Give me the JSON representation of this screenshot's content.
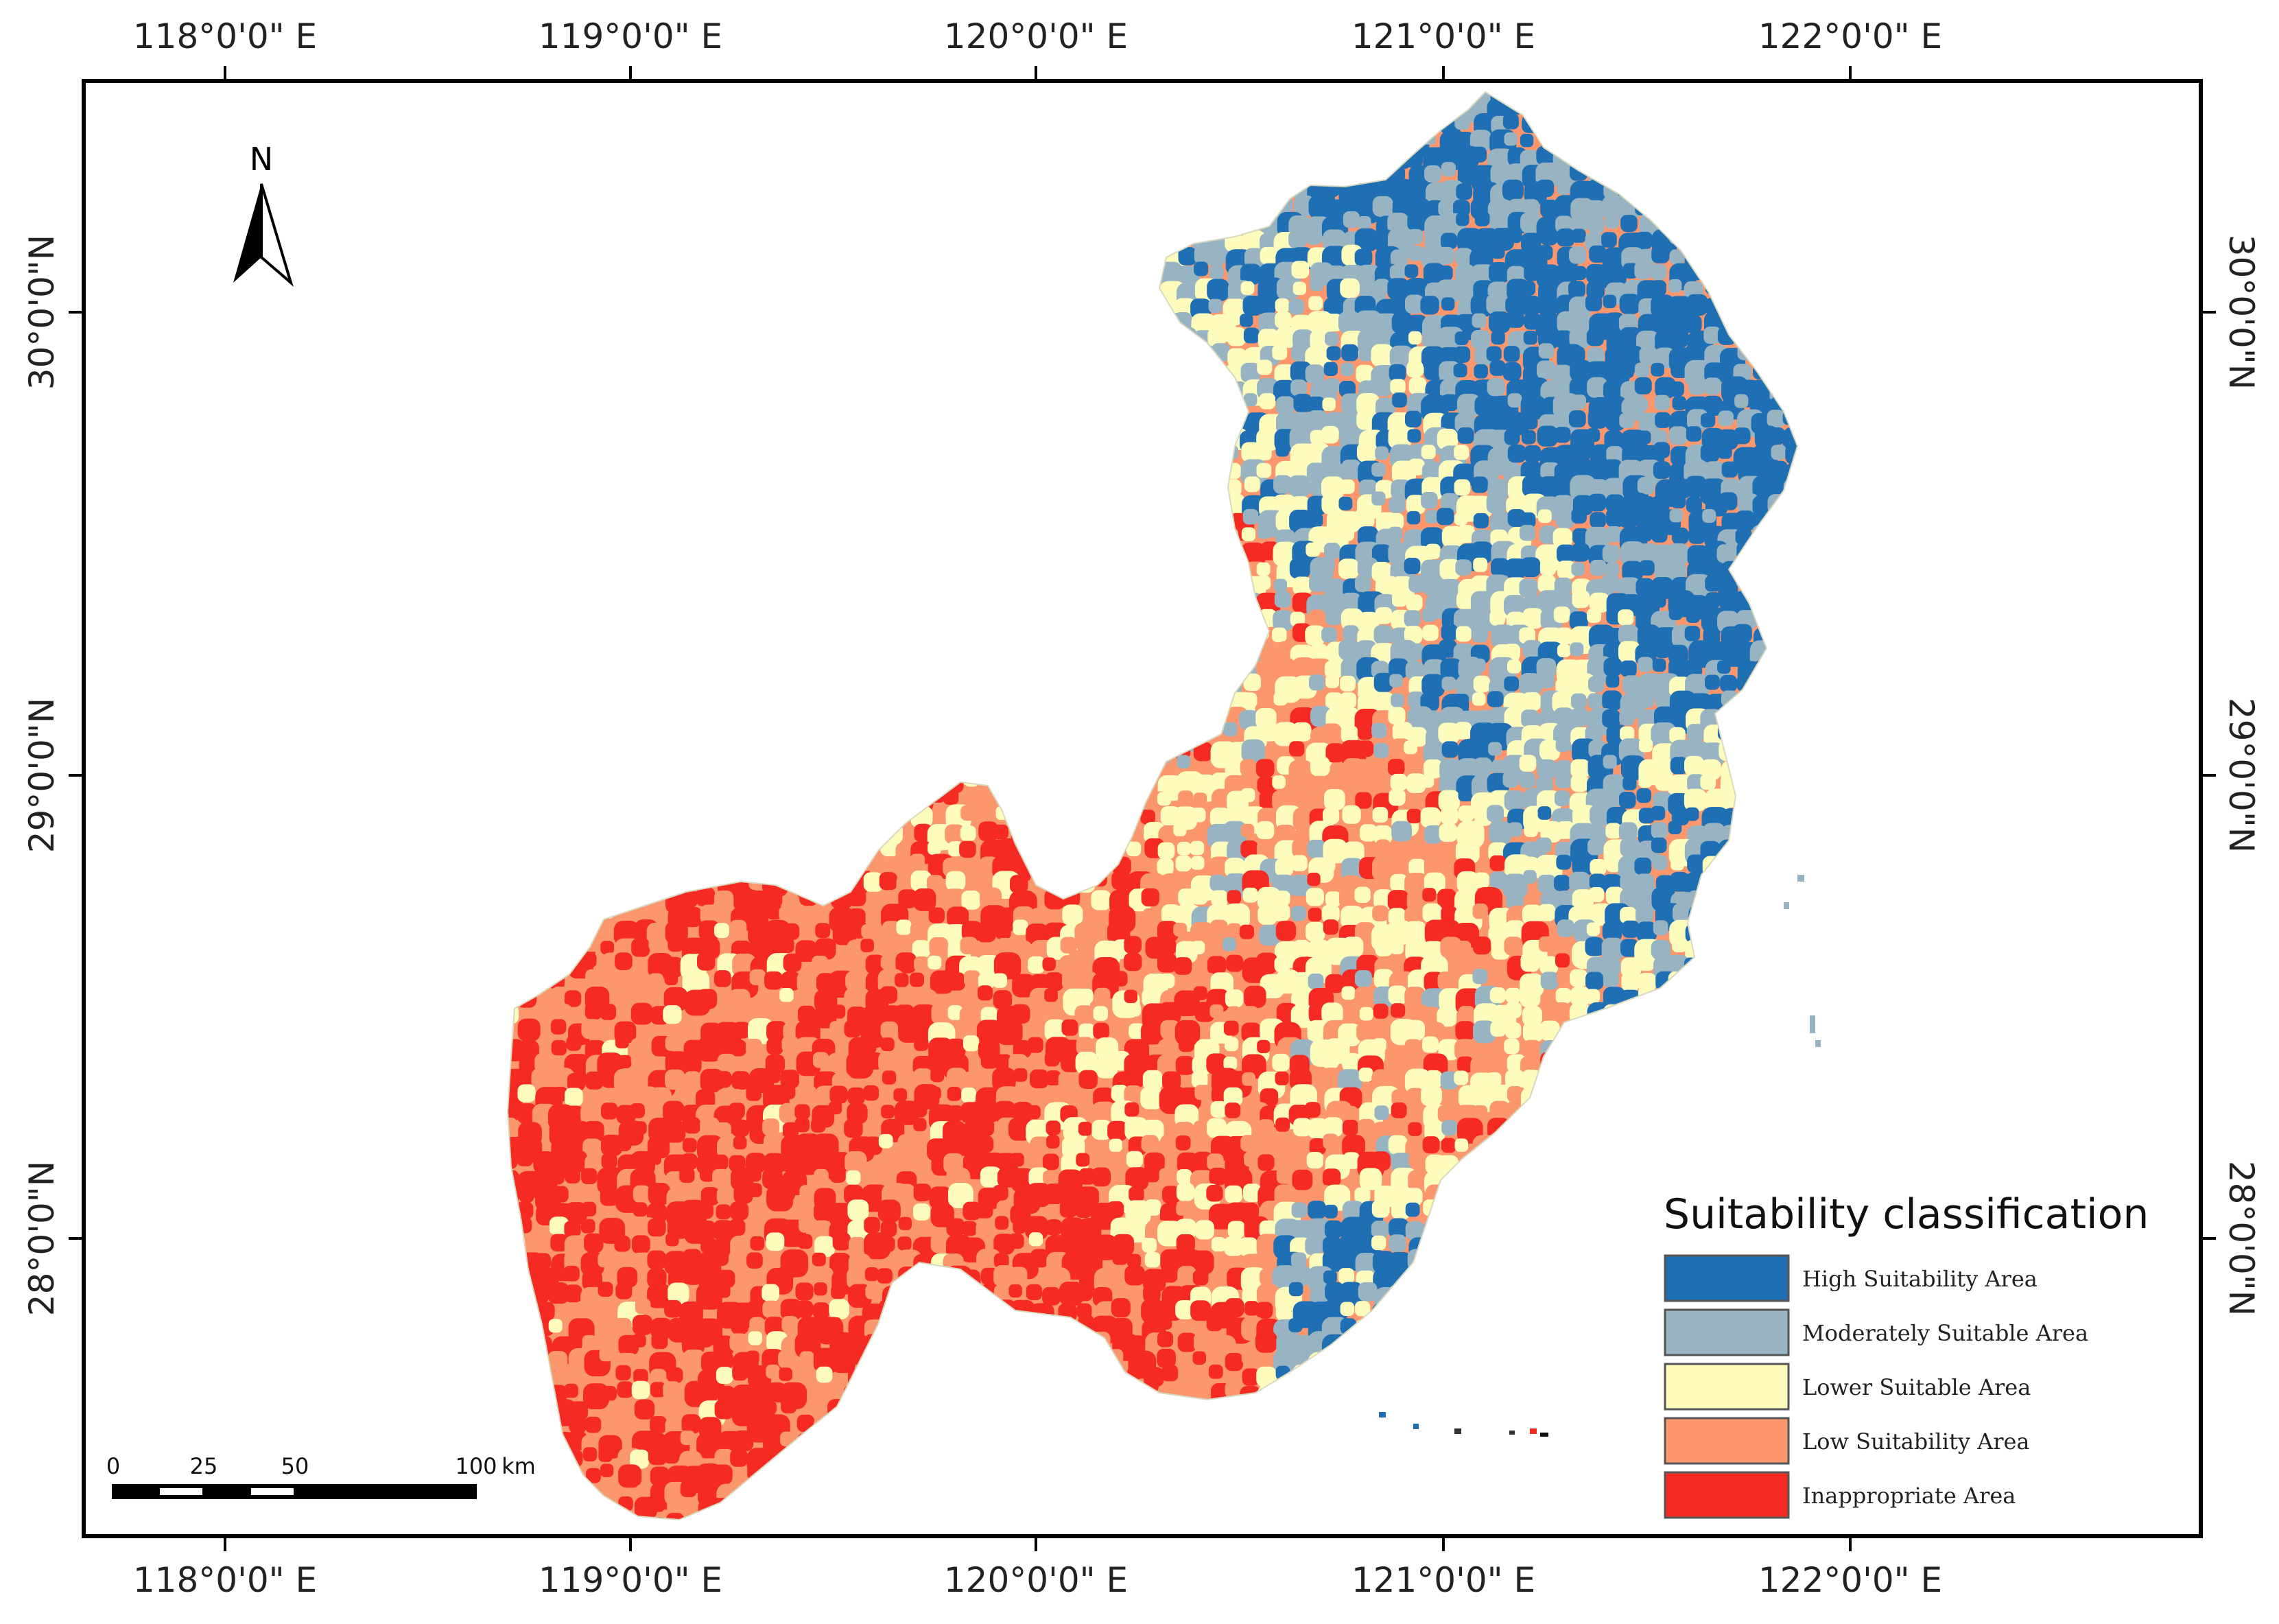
{
  "graticule": {
    "top_labels": [
      "118°0'0\" E",
      "119°0'0\" E",
      "120°0'0\" E",
      "121°0'0\" E",
      "122°0'0\" E"
    ],
    "bottom_labels": [
      "118°0'0\" E",
      "119°0'0\" E",
      "120°0'0\" E",
      "121°0'0\" E",
      "122°0'0\" E"
    ],
    "left_labels": [
      "30°0'0\"N",
      "29°0'0\"N",
      "28°0'0\"N"
    ],
    "right_labels": [
      "30°0'0\"N",
      "29°0'0\"N",
      "28°0'0\"N"
    ]
  },
  "north_arrow": {
    "label": "N",
    "icon": "north-arrow-icon"
  },
  "scale_bar": {
    "ticks": [
      "0",
      "25",
      "50",
      "100"
    ],
    "unit": "km"
  },
  "legend": {
    "title": "Suitability classification",
    "items": [
      {
        "label": "High Suitability Area",
        "color": "#1f6fb4"
      },
      {
        "label": "Moderately Suitable Area",
        "color": "#98b4c2"
      },
      {
        "label": "Lower Suitable Area",
        "color": "#fdfcbd"
      },
      {
        "label": "Low Suitability Area",
        "color": "#fb966d"
      },
      {
        "label": "Inappropriate Area",
        "color": "#f42a23"
      }
    ]
  }
}
